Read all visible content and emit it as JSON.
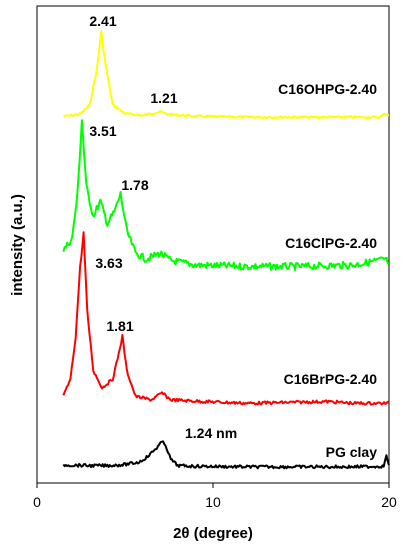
{
  "chart_data": {
    "type": "line",
    "xlabel": "2θ (degree)",
    "ylabel": "intensity (a.u.)",
    "xlim": [
      0,
      20
    ],
    "x_ticks": [
      "0",
      "10",
      "20"
    ],
    "y_scale": "arbitrary units, curves vertically offset",
    "grid": false,
    "legend": "none (curves labeled directly)",
    "series": [
      {
        "name": "C16OHPG-2.40",
        "color": "#ffff00",
        "points": [
          [
            1.5,
            0.02
          ],
          [
            2.0,
            0.03
          ],
          [
            2.5,
            0.05
          ],
          [
            3.0,
            0.15
          ],
          [
            3.4,
            0.55
          ],
          [
            3.65,
            0.98
          ],
          [
            3.9,
            0.6
          ],
          [
            4.3,
            0.15
          ],
          [
            5.0,
            0.05
          ],
          [
            6.0,
            0.03
          ],
          [
            7.0,
            0.07
          ],
          [
            7.5,
            0.04
          ],
          [
            9,
            0.02
          ],
          [
            12,
            0.01
          ],
          [
            15,
            0.01
          ],
          [
            18,
            0.01
          ],
          [
            19.5,
            0.01
          ],
          [
            19.8,
            0.05
          ],
          [
            20,
            0.03
          ]
        ],
        "annotations": [
          {
            "x": 3.65,
            "text": "2.41"
          },
          {
            "x": 7.3,
            "text": "1.21"
          }
        ]
      },
      {
        "name": "C16ClPG-2.40",
        "color": "#00ff00",
        "points": [
          [
            1.5,
            0.12
          ],
          [
            2.0,
            0.2
          ],
          [
            2.3,
            0.5
          ],
          [
            2.55,
            1.0
          ],
          [
            2.8,
            0.55
          ],
          [
            3.2,
            0.35
          ],
          [
            3.6,
            0.45
          ],
          [
            4.0,
            0.3
          ],
          [
            4.4,
            0.38
          ],
          [
            4.75,
            0.5
          ],
          [
            5.1,
            0.25
          ],
          [
            5.6,
            0.1
          ],
          [
            6.2,
            0.06
          ],
          [
            7.0,
            0.1
          ],
          [
            7.6,
            0.05
          ],
          [
            9,
            0.02
          ],
          [
            12,
            0.01
          ],
          [
            15,
            0.01
          ],
          [
            18,
            0.02
          ],
          [
            19.8,
            0.06
          ],
          [
            20,
            0.03
          ]
        ],
        "annotations": [
          {
            "x": 2.55,
            "text": "3.51"
          },
          {
            "x": 4.75,
            "text": "1.78"
          }
        ]
      },
      {
        "name": "C16BrPG-2.40",
        "color": "#ff0000",
        "points": [
          [
            1.5,
            0.05
          ],
          [
            1.9,
            0.15
          ],
          [
            2.2,
            0.4
          ],
          [
            2.45,
            0.8
          ],
          [
            2.65,
            1.0
          ],
          [
            2.85,
            0.55
          ],
          [
            3.2,
            0.2
          ],
          [
            3.7,
            0.1
          ],
          [
            4.3,
            0.15
          ],
          [
            4.65,
            0.3
          ],
          [
            4.85,
            0.4
          ],
          [
            5.1,
            0.2
          ],
          [
            5.6,
            0.05
          ],
          [
            6.5,
            0.03
          ],
          [
            7.1,
            0.07
          ],
          [
            7.6,
            0.03
          ],
          [
            9.5,
            0.02
          ],
          [
            12,
            0.01
          ],
          [
            16.5,
            0.02
          ],
          [
            18,
            0.01
          ],
          [
            20,
            0.01
          ]
        ],
        "annotations": [
          {
            "x": 2.65,
            "text": "3.63"
          },
          {
            "x": 4.85,
            "text": "1.81"
          }
        ]
      },
      {
        "name": "PG clay",
        "color": "#000000",
        "points": [
          [
            1.5,
            0.05
          ],
          [
            2,
            0.05
          ],
          [
            3,
            0.04
          ],
          [
            4,
            0.04
          ],
          [
            5,
            0.06
          ],
          [
            5.8,
            0.1
          ],
          [
            6.3,
            0.2
          ],
          [
            6.8,
            0.35
          ],
          [
            7.1,
            0.45
          ],
          [
            7.3,
            0.4
          ],
          [
            7.6,
            0.15
          ],
          [
            8,
            0.04
          ],
          [
            9,
            0.03
          ],
          [
            12,
            0.02
          ],
          [
            15,
            0.02
          ],
          [
            18,
            0.02
          ],
          [
            19.7,
            0.03
          ],
          [
            19.85,
            0.2
          ],
          [
            20,
            0.05
          ]
        ],
        "annotations": [
          {
            "x": 7.3,
            "text": "1.24 nm"
          }
        ]
      }
    ]
  },
  "curve_labels": {
    "yellow": "C16OHPG-2.40",
    "green": "C16ClPG-2.40",
    "red": "C16BrPG-2.40",
    "black": "PG clay"
  },
  "peak_labels": {
    "y1": "2.41",
    "y2": "1.21",
    "g1": "3.51",
    "g2": "1.78",
    "r1": "3.63",
    "r2": "1.81",
    "k1": "1.24 nm"
  },
  "axes": {
    "xlabel": "2θ (degree)",
    "ylabel": "intensity (a.u.)",
    "xtick_0": "0",
    "xtick_10": "10",
    "xtick_20": "20"
  }
}
